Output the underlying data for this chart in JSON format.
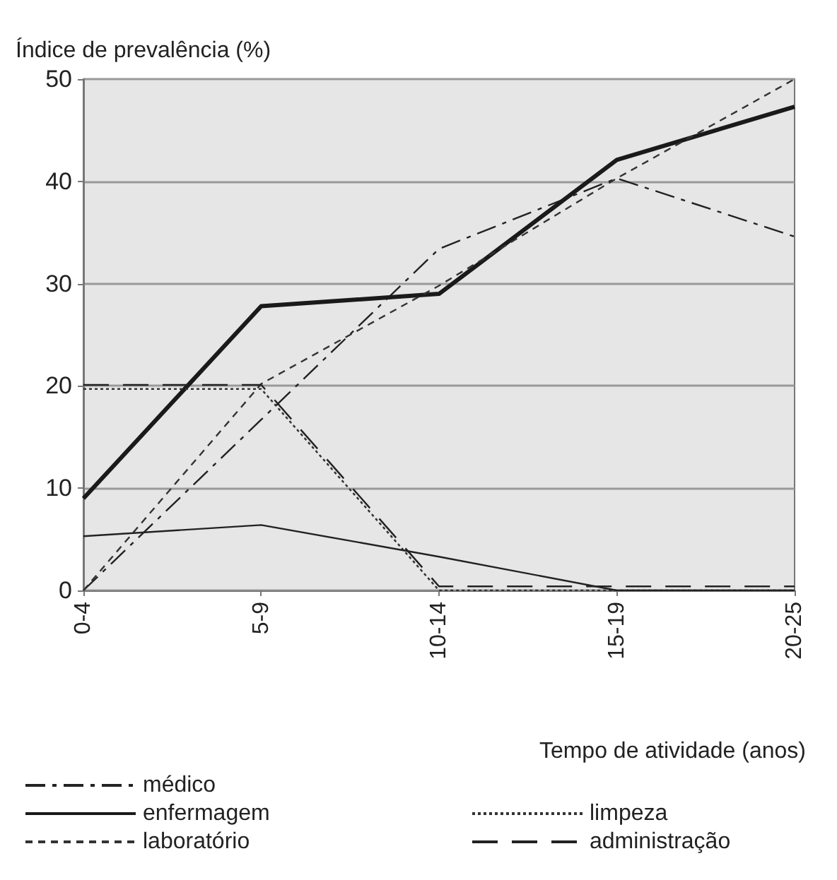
{
  "chart_data": {
    "type": "line",
    "ylabel": "Índice de prevalência (%)",
    "xlabel": "Tempo de atividade (anos)",
    "categories": [
      "0-4",
      "5-9",
      "10-14",
      "15-19",
      "20-25"
    ],
    "ylim": [
      0,
      50
    ],
    "yticks": [
      0,
      10,
      20,
      30,
      40,
      50
    ],
    "grid": "y",
    "legend": "bottom",
    "marker": "none",
    "series": [
      {
        "name": "médico",
        "color": "#222222",
        "line_style": "dashed",
        "values": [
          0,
          16.7,
          33.4,
          40.3,
          34.6
        ]
      },
      {
        "name": "enfermagem",
        "color": "#1a1a1a",
        "line_style": "solid",
        "values": [
          9,
          27.8,
          29,
          42.1,
          47.3
        ]
      },
      {
        "name": "laboratório",
        "color": "#333333",
        "line_style": "dashed",
        "values": [
          0,
          20.2,
          29.8,
          40.3,
          50
        ]
      },
      {
        "name": "limpeza",
        "color": "#333333",
        "line_style": "dotted",
        "values": [
          19.7,
          19.7,
          0,
          0,
          0
        ]
      },
      {
        "name": "administração",
        "color": "#222222",
        "line_style": "dashed",
        "values": [
          20.1,
          20.1,
          0.4,
          0.4,
          0.4
        ]
      },
      {
        "color": "#222222",
        "line_style": "solid",
        "values": [
          5.3,
          6.4,
          3.3,
          0,
          0
        ]
      }
    ]
  }
}
